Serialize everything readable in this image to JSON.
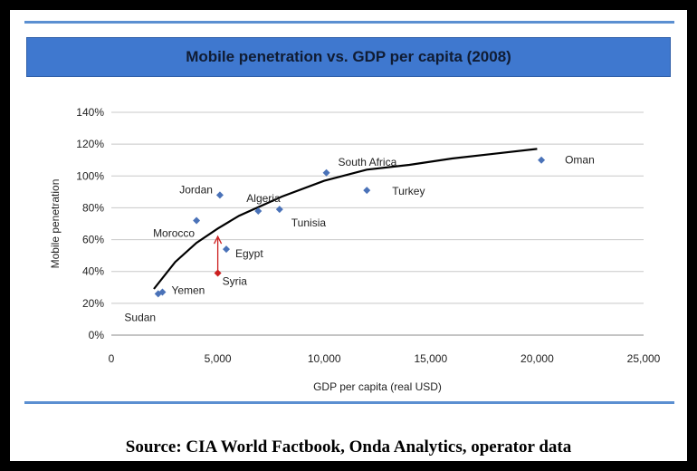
{
  "chart_data": {
    "type": "scatter",
    "title": "Mobile penetration vs. GDP per capita (2008)",
    "xlabel": "GDP per capita (real USD)",
    "ylabel": "Mobile penetration",
    "xlim": [
      0,
      25000
    ],
    "ylim": [
      0,
      140
    ],
    "x_ticks": [
      0,
      5000,
      10000,
      15000,
      20000,
      25000
    ],
    "x_tick_labels": [
      "0",
      "5,000",
      "10,000",
      "15,000",
      "20,000",
      "25,000"
    ],
    "y_ticks": [
      0,
      20,
      40,
      60,
      80,
      100,
      120,
      140
    ],
    "y_tick_labels": [
      "0%",
      "20%",
      "40%",
      "60%",
      "80%",
      "100%",
      "120%",
      "140%"
    ],
    "grid": "horizontal",
    "points": [
      {
        "label": "Sudan",
        "x": 2200,
        "y": 26
      },
      {
        "label": "Yemen",
        "x": 2400,
        "y": 27
      },
      {
        "label": "Morocco",
        "x": 4000,
        "y": 72
      },
      {
        "label": "Jordan",
        "x": 5100,
        "y": 88
      },
      {
        "label": "Egypt",
        "x": 5400,
        "y": 54
      },
      {
        "label": "Algeria",
        "x": 6900,
        "y": 78
      },
      {
        "label": "Tunisia",
        "x": 7900,
        "y": 79
      },
      {
        "label": "South Africa",
        "x": 10100,
        "y": 102
      },
      {
        "label": "Turkey",
        "x": 12000,
        "y": 91
      },
      {
        "label": "Oman",
        "x": 20200,
        "y": 110
      },
      {
        "label": "Syria",
        "x": 5000,
        "y": 39
      }
    ],
    "trend_line": {
      "type": "logarithmic",
      "x": [
        2000,
        3000,
        4000,
        5000,
        6000,
        8000,
        10000,
        12000,
        14000,
        16000,
        18000,
        20000
      ],
      "y": [
        29,
        46,
        58,
        67,
        75,
        87,
        97,
        104,
        107,
        111,
        114,
        117
      ]
    },
    "annotation": {
      "type": "arrow",
      "x": 5000,
      "from_y": 39,
      "to_y": 62
    },
    "colors": {
      "points": "#4a72b8",
      "syria": "#cc1f1f",
      "arrow": "#cc1f1f",
      "trend": "#000000",
      "title_box": "#3f78cf",
      "rules": "#5b8fd1"
    }
  },
  "source_text": "Source: CIA World Factbook, Onda Analytics, operator data"
}
